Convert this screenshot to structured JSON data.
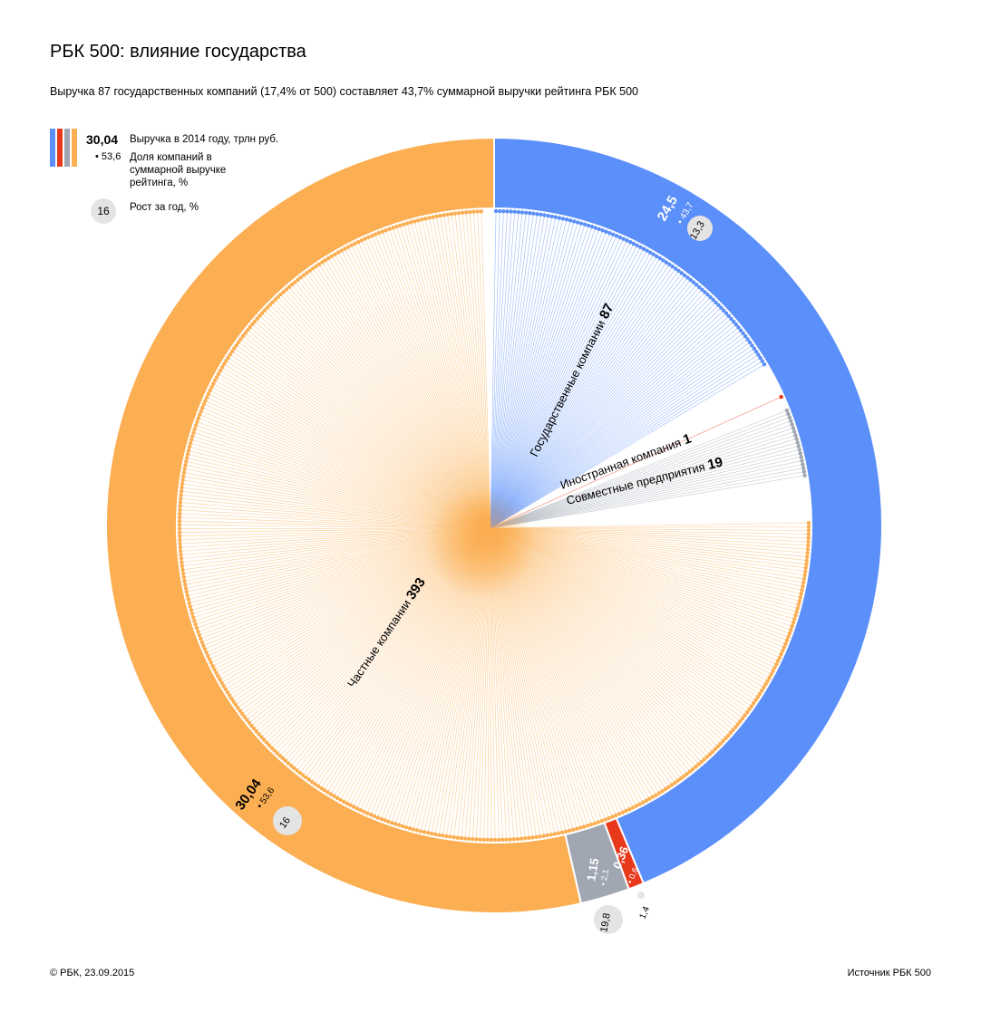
{
  "title": "РБК 500: влияние государства",
  "subtitle": "Выручка 87 государственных компаний (17,4% от 500) составляет 43,7% суммарной выручки рейтинга РБК 500",
  "legend": {
    "colors": [
      "#5b8ff9",
      "#e8391d",
      "#a0a7b2",
      "#fbae52"
    ],
    "value": "30,04",
    "value_label": "Выручка в 2014 году, трлн руб.",
    "share": "• 53,6",
    "share_label": "Доля компаний в суммарной выручке рейтинга, %",
    "growth": "16",
    "growth_label": "Рост за год, %"
  },
  "footer": {
    "left": "© РБК, 23.09.2015",
    "right": "Источник РБК 500"
  },
  "chart_data": {
    "type": "pie",
    "categories": [
      "Государственные компании",
      "Иностранная компания",
      "Совместные предприятия",
      "Частные компании"
    ],
    "counts": [
      87,
      1,
      19,
      393
    ],
    "revenue_trln_rub": [
      24.5,
      0.36,
      1.15,
      30.04
    ],
    "share_pct": [
      43.7,
      0.6,
      2.1,
      53.6
    ],
    "growth_pct": [
      13.3,
      1.4,
      19.8,
      16
    ],
    "revenue_labels": [
      "24,5",
      "0,36",
      "1,15",
      "30,04"
    ],
    "share_labels": [
      "• 43,7",
      "• 0,6",
      "• 2,1",
      "• 53,6"
    ],
    "growth_labels": [
      "13,3",
      "1,4",
      "19,8",
      "16"
    ],
    "colors": [
      "#5b8ff9",
      "#e8391d",
      "#a0a7b2",
      "#fbae52"
    ],
    "inner_labels": [
      {
        "name": "Государственные компании",
        "count": "87"
      },
      {
        "name": "Иностранная компания",
        "count": "1"
      },
      {
        "name": "Совместные предприятия",
        "count": "19"
      },
      {
        "name": "Частные компании",
        "count": "393"
      }
    ]
  }
}
